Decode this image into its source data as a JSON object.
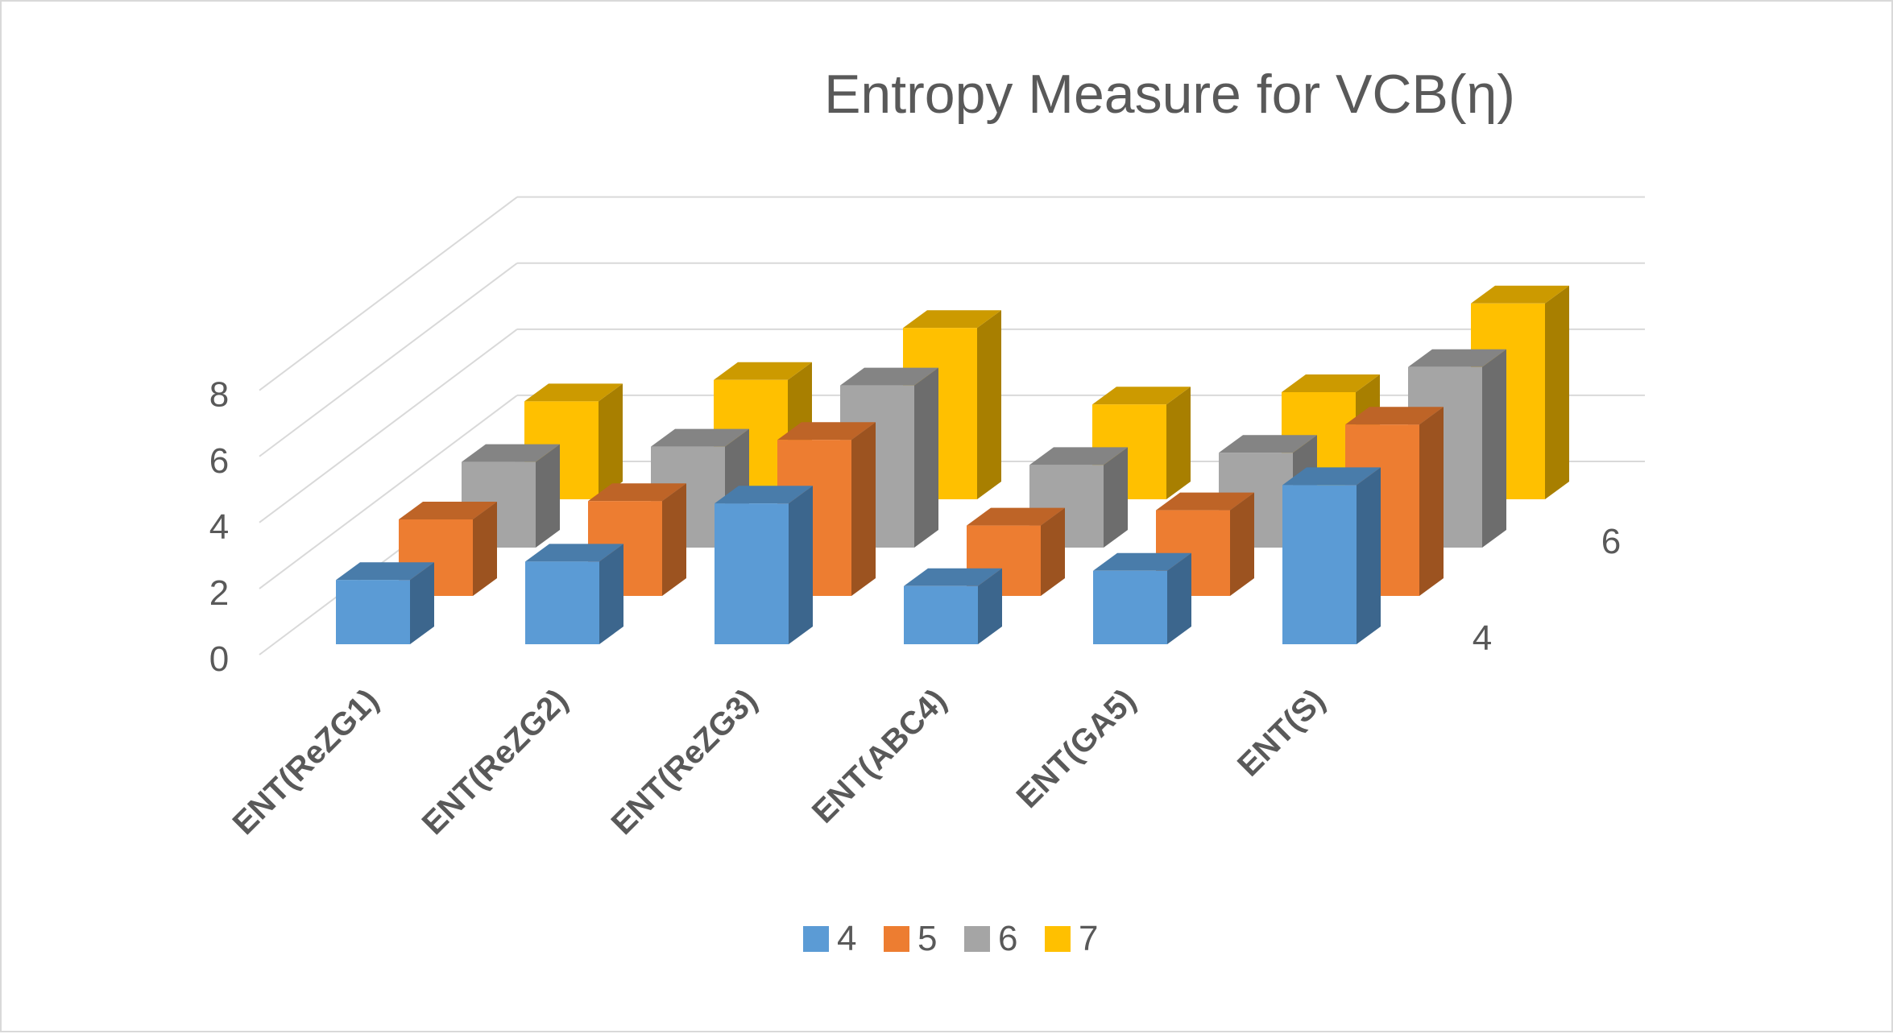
{
  "chart_data": {
    "type": "bar",
    "variant": "3d-column",
    "title": "Entropy Measure for VCB(η)",
    "categories": [
      "ENT(ReZG1)",
      "ENT(ReZG2)",
      "ENT(ReZG3)",
      "ENT(ABC4)",
      "ENT(GA5)",
      "ENT(S)"
    ],
    "series": [
      {
        "name": "4",
        "color": "#5b9bd5",
        "values": [
          2.1,
          2.7,
          4.6,
          1.9,
          2.4,
          5.2
        ]
      },
      {
        "name": "5",
        "color": "#ed7d31",
        "values": [
          2.5,
          3.1,
          5.1,
          2.3,
          2.8,
          5.6
        ]
      },
      {
        "name": "6",
        "color": "#a5a5a5",
        "values": [
          2.8,
          3.3,
          5.3,
          2.7,
          3.1,
          5.9
        ]
      },
      {
        "name": "7",
        "color": "#ffc000",
        "values": [
          3.2,
          3.9,
          5.6,
          3.1,
          3.5,
          6.4
        ]
      }
    ],
    "y_ticks": [
      0,
      2,
      4,
      6,
      8
    ],
    "ylim": [
      0,
      8
    ],
    "depth_axis_labels": [
      "4",
      "6"
    ],
    "legend_position": "bottom",
    "grid": true
  }
}
